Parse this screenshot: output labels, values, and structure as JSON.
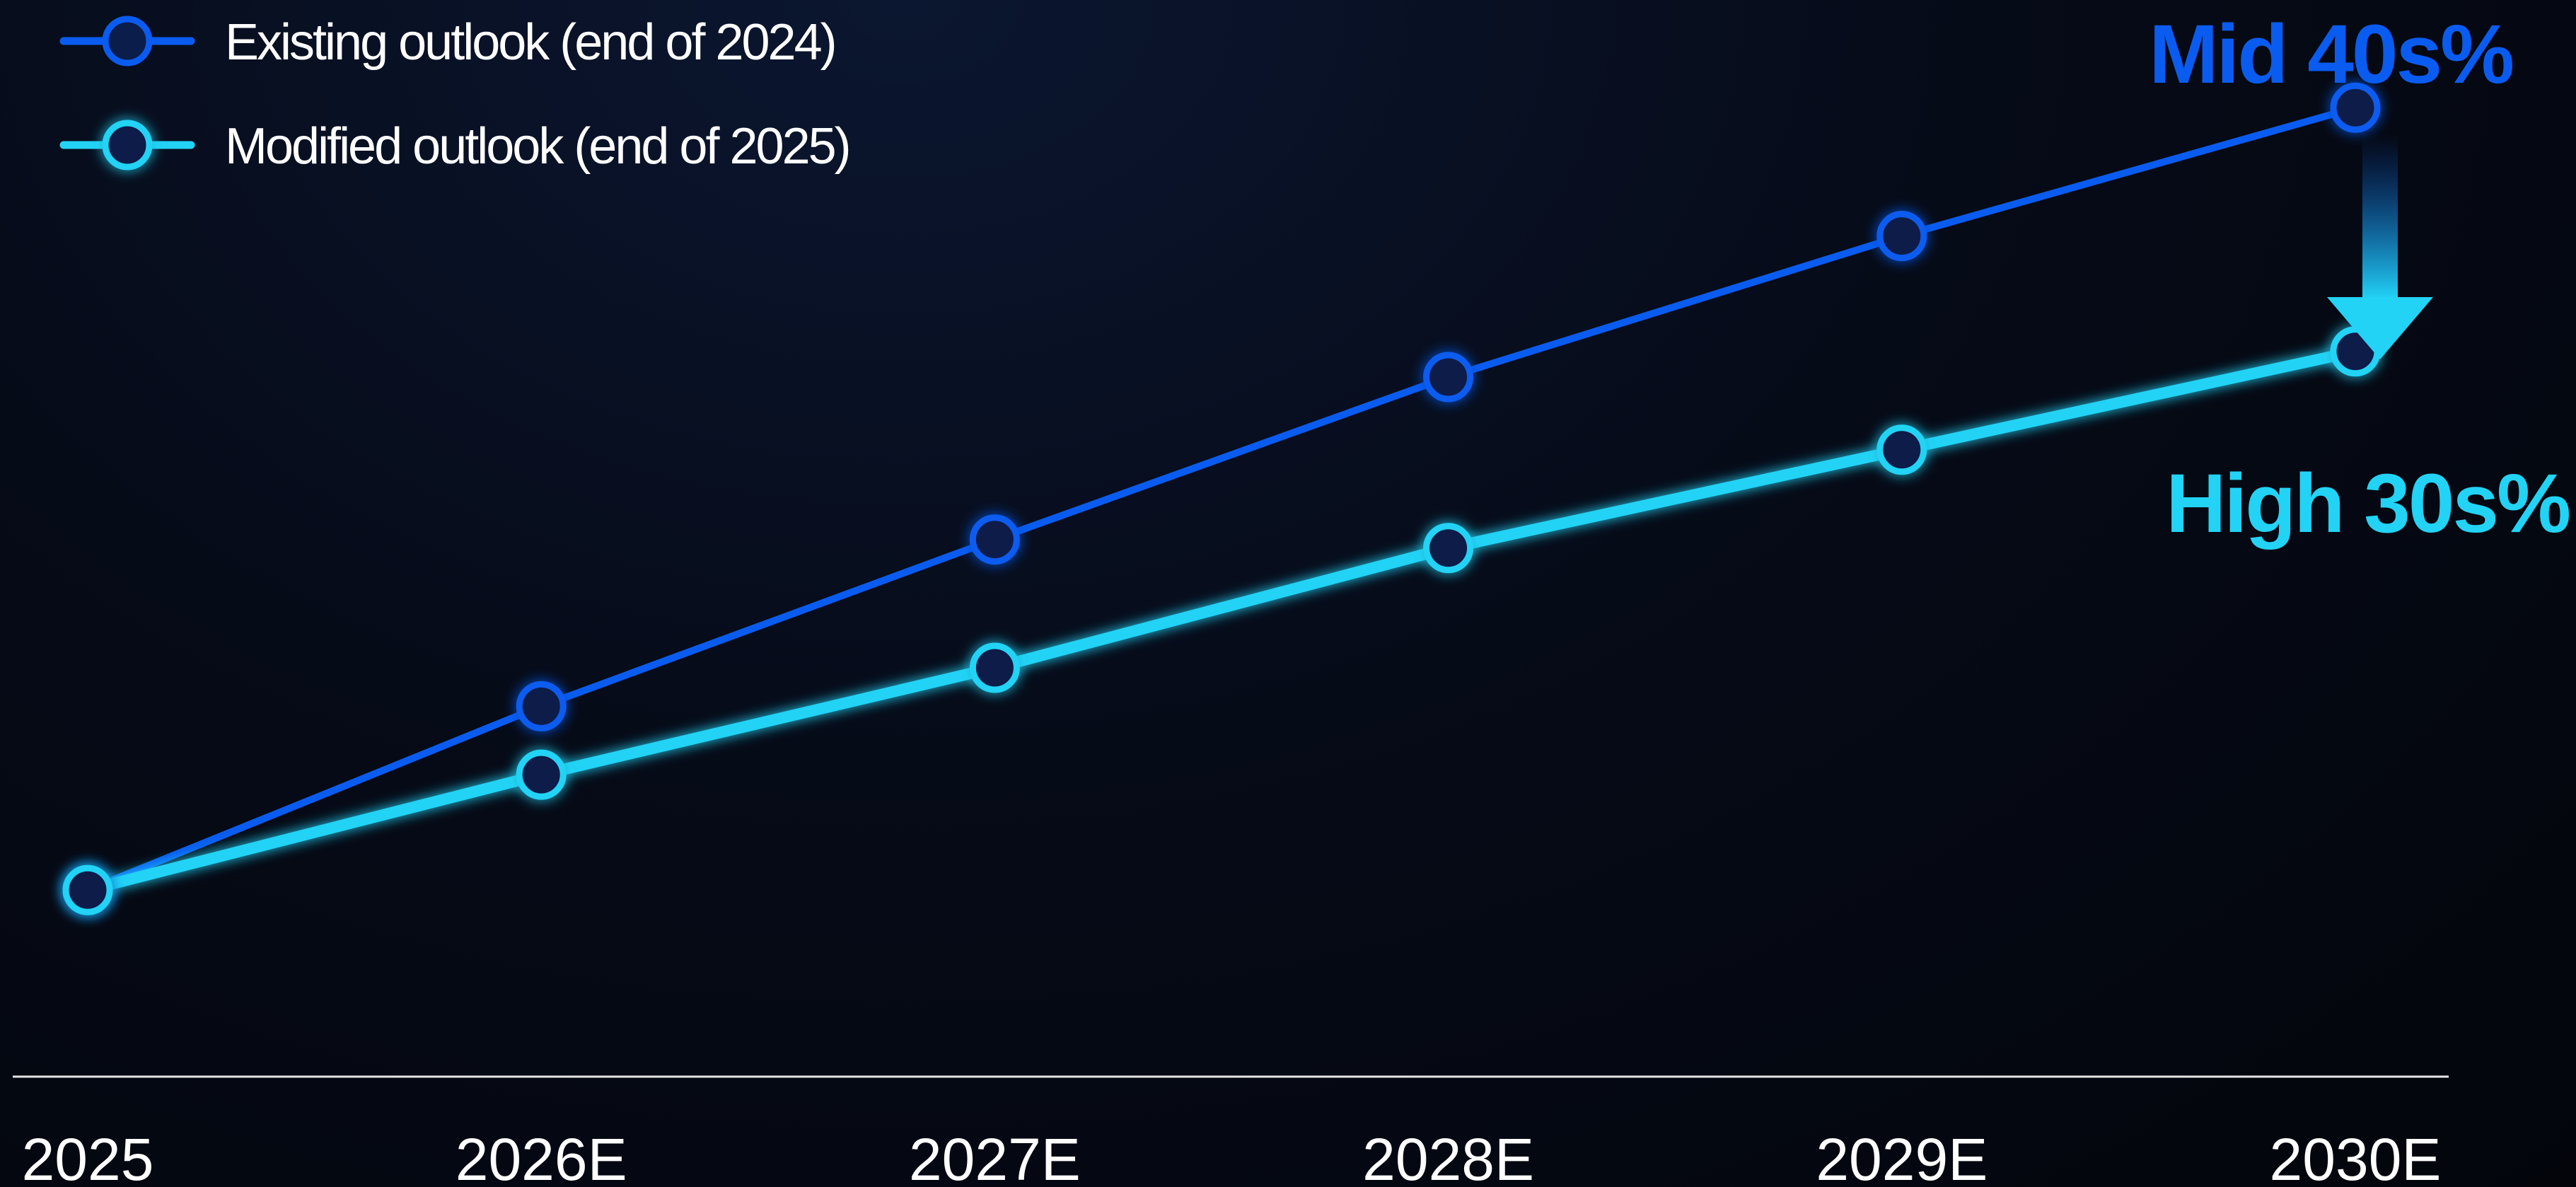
{
  "chart_data": {
    "type": "line",
    "title": "",
    "xlabel": "",
    "ylabel": "",
    "categories": [
      "2025",
      "2026E",
      "2027E",
      "2028E",
      "2029E",
      "2030E"
    ],
    "series": [
      {
        "name": "Existing outlook (end of 2024)",
        "color": "#0a5cf0",
        "values": [
          20,
          24.3,
          28.2,
          32,
          35.3,
          38.3
        ],
        "end_label": "Mid 40s%"
      },
      {
        "name": "Modified outlook (end of 2025)",
        "color": "#22d3f5",
        "values": [
          20,
          22.7,
          25.2,
          28.0,
          30.3,
          32.6
        ],
        "end_label": "High 30s%"
      }
    ],
    "ylim": [
      16,
      39
    ],
    "grid": false,
    "y_axis_shown": false,
    "legend_position": "top-left",
    "annotation": "downward arrow from existing to modified outlook at 2030E"
  }
}
